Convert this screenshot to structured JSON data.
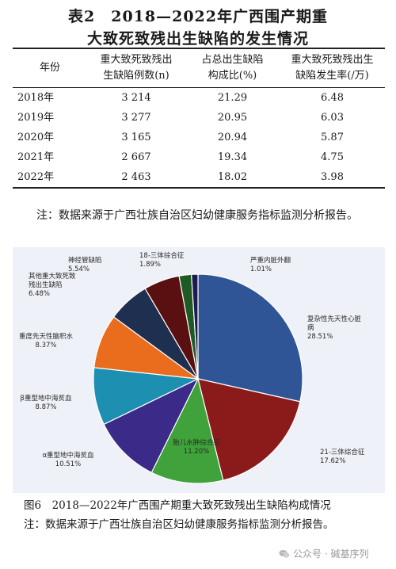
{
  "table": {
    "title_line1": "表2　2018—2022年广西围产期重",
    "title_line2": "大致死致残出生缺陷的发生情况",
    "headers": [
      [
        "年份"
      ],
      [
        "重大致死致残出",
        "生缺陷例数(n)"
      ],
      [
        "占总出生缺陷",
        "构成比(%)"
      ],
      [
        "重大致死致残出生",
        "缺陷发生率(/万)"
      ]
    ],
    "rows": [
      [
        "2018年",
        "3 214",
        "21.29",
        "6.48"
      ],
      [
        "2019年",
        "3 277",
        "20.95",
        "6.03"
      ],
      [
        "2020年",
        "3 165",
        "20.94",
        "5.87"
      ],
      [
        "2021年",
        "2 667",
        "19.34",
        "4.75"
      ],
      [
        "2022年",
        "2 463",
        "18.02",
        "3.98"
      ]
    ],
    "note": "注：数据来源于广西壮族自治区妇幼健康服务指标监测分析报告。"
  },
  "figure": {
    "caption": "图6　2018—2022年广西围产期重大致死致残出生缺陷构成情况",
    "note": "注：数据来源于广西壮族自治区妇幼健康服务指标监测分析报告。"
  },
  "watermark": {
    "text": "公众号 · 碱基序列",
    "icon": "wechat-icon"
  },
  "chart_data": {
    "type": "pie",
    "slices": [
      {
        "label": "复杂性先天性心脏病",
        "value": 28.51,
        "value_label": "28.51%",
        "color": "#2f5597"
      },
      {
        "label": "21-三体综合征",
        "value": 17.62,
        "value_label": "17.62%",
        "color": "#8b1a1a"
      },
      {
        "label": "胎儿水肿综合征",
        "value": 11.2,
        "value_label": "11.20%",
        "color": "#3fa23a"
      },
      {
        "label": "α重型地中海贫血",
        "value": 10.51,
        "value_label": "10.51%",
        "color": "#3b2a88"
      },
      {
        "label": "β重型地中海贫血",
        "value": 8.87,
        "value_label": "8.87%",
        "color": "#1d8fb0"
      },
      {
        "label": "重度先天性脑积水",
        "value": 8.37,
        "value_label": "8.37%",
        "color": "#ea6d1e"
      },
      {
        "label": "其他重大致死致残出生缺陷",
        "value": 6.48,
        "value_label": "6.48%",
        "color": "#1f2f4f"
      },
      {
        "label": "神经管缺陷",
        "value": 5.54,
        "value_label": "5.54%",
        "color": "#5a1010"
      },
      {
        "label": "18-三体综合征",
        "value": 1.89,
        "value_label": "1.89%",
        "color": "#1f5a24"
      },
      {
        "label": "严重内脏外翻",
        "value": 1.01,
        "value_label": "1.01%",
        "color": "#1e1b4f"
      }
    ],
    "start_angle_deg": 0,
    "direction": "clockwise"
  }
}
